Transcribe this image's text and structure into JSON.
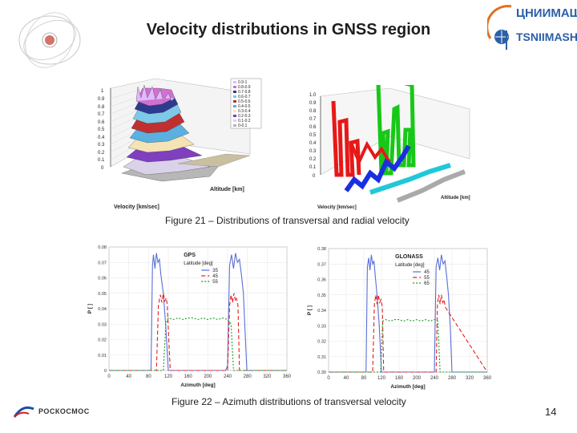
{
  "title": "Velocity distributions in GNSS region",
  "logo_right": {
    "line1": "ЦНИИМАШ",
    "line2": "TSNIIMASH"
  },
  "logo_bottom": {
    "text": "РОСКОСМОС"
  },
  "caption1": "Figure 21 – Distributions of  transversal and radial velocity",
  "caption2": "Figure 22 – Azimuth distributions of transversal velocity",
  "page_number": "14",
  "charts_3d": {
    "left": {
      "x_label": "Velocity [km/sec]",
      "y_label": "Altitude [km]",
      "z_ticks": [
        "0",
        "0.1",
        "0.2",
        "0.3",
        "0.4",
        "0.5",
        "0.6",
        "0.7",
        "0.8",
        "0.9",
        "1"
      ],
      "legend": [
        "0.9-1",
        "0.8-0.9",
        "0.7-0.8",
        "0.6-0.7",
        "0.5-0.6",
        "0.4-0.5",
        "0.3-0.4",
        "0.2-0.3",
        "0.1-0.2",
        "0-0.1"
      ]
    },
    "right": {
      "x_label": "Velocity [km/sec]",
      "y_label": "Altitude [km]",
      "z_ticks": [
        "0",
        "0.1",
        "0.2",
        "0.3",
        "0.4",
        "0.5",
        "0.6",
        "0.7",
        "0.8",
        "0.9",
        "1.0"
      ]
    }
  },
  "chart_data": [
    {
      "type": "line",
      "title": "GPS",
      "xlabel": "Azimuth [deg]",
      "ylabel": "P [ ]",
      "legend_title": "Latitude [deg]",
      "xlim": [
        0,
        360
      ],
      "ylim": [
        0,
        0.08
      ],
      "x_ticks": [
        "0",
        "40",
        "80",
        "120",
        "160",
        "200",
        "240",
        "280",
        "320",
        "360"
      ],
      "y_ticks": [
        "0",
        "0.01",
        "0.02",
        "0.03",
        "0.04",
        "0.05",
        "0.06",
        "0.07",
        "0.08"
      ],
      "series": [
        {
          "name": "35",
          "color": "#5a6fd6",
          "dash": "",
          "x": [
            0,
            85,
            88,
            90,
            93,
            96,
            99,
            102,
            105,
            110,
            115,
            120,
            124,
            128,
            140,
            160,
            180,
            200,
            220,
            232,
            236,
            240,
            244,
            248,
            252,
            256,
            260,
            264,
            268,
            272,
            275,
            279,
            360
          ],
          "y": [
            0,
            0,
            0.068,
            0.075,
            0.066,
            0.076,
            0.07,
            0.072,
            0.062,
            0.05,
            0.028,
            0,
            0,
            0,
            0,
            0,
            0,
            0,
            0,
            0,
            0,
            0.003,
            0.068,
            0.075,
            0.066,
            0.076,
            0.07,
            0.072,
            0.062,
            0.05,
            0.028,
            0,
            0
          ]
        },
        {
          "name": "45",
          "color": "#e02020",
          "dash": "5,3",
          "x": [
            0,
            96,
            100,
            104,
            107,
            110,
            113,
            116,
            118,
            121,
            124,
            160,
            200,
            236,
            240,
            244,
            247,
            250,
            253,
            256,
            258,
            261,
            264,
            360
          ],
          "y": [
            0,
            0,
            0.042,
            0.049,
            0.044,
            0.05,
            0.045,
            0.047,
            0.042,
            0.02,
            0,
            0,
            0,
            0,
            0,
            0.042,
            0.049,
            0.044,
            0.05,
            0.045,
            0.047,
            0.042,
            0,
            0
          ]
        },
        {
          "name": "55",
          "color": "#229922",
          "dash": "2,2",
          "x": [
            0,
            110,
            115,
            120,
            130,
            140,
            150,
            160,
            170,
            180,
            190,
            200,
            210,
            220,
            230,
            240,
            247,
            252,
            360
          ],
          "y": [
            0,
            0,
            0.03,
            0.034,
            0.033,
            0.034,
            0.033,
            0.034,
            0.034,
            0.033,
            0.034,
            0.033,
            0.034,
            0.033,
            0.034,
            0.033,
            0.03,
            0,
            0
          ]
        }
      ]
    },
    {
      "type": "line",
      "title": "GLONASS",
      "xlabel": "Azimuth [deg]",
      "ylabel": "P [ ]",
      "legend_title": "Latitude [deg]",
      "xlim": [
        0,
        360
      ],
      "ylim": [
        0.3,
        0.38
      ],
      "x_ticks": [
        "0",
        "40",
        "80",
        "120",
        "160",
        "200",
        "240",
        "280",
        "320",
        "360"
      ],
      "y_ticks": [
        "0.30",
        "0.31",
        "0.32",
        "0.33",
        "0.34",
        "0.35",
        "0.36",
        "0.37",
        "0.38"
      ],
      "series": [
        {
          "name": "45",
          "color": "#5a6fd6",
          "dash": "",
          "x": [
            0,
            85,
            88,
            91,
            94,
            97,
            100,
            103,
            106,
            110,
            115,
            120,
            124,
            200,
            236,
            240,
            244,
            248,
            252,
            256,
            260,
            264,
            268,
            272,
            276,
            280,
            360
          ],
          "y": [
            0.3,
            0.3,
            0.368,
            0.374,
            0.366,
            0.376,
            0.37,
            0.372,
            0.362,
            0.35,
            0.33,
            0.3,
            0.3,
            0.3,
            0.3,
            0.3,
            0.368,
            0.374,
            0.366,
            0.376,
            0.37,
            0.372,
            0.362,
            0.35,
            0.33,
            0.3,
            0.3
          ]
        },
        {
          "name": "55",
          "color": "#e02020",
          "dash": "5,3",
          "x": [
            0,
            100,
            104,
            107,
            110,
            113,
            116,
            119,
            122,
            125,
            240,
            244,
            247,
            250,
            253,
            256,
            259,
            262,
            265,
            360
          ],
          "y": [
            0.3,
            0.3,
            0.344,
            0.35,
            0.344,
            0.35,
            0.345,
            0.347,
            0.342,
            0.3,
            0.3,
            0.3,
            0.344,
            0.35,
            0.344,
            0.35,
            0.345,
            0.347,
            0.342,
            0.3
          ]
        },
        {
          "name": "65",
          "color": "#229922",
          "dash": "2,2",
          "x": [
            0,
            118,
            123,
            130,
            140,
            150,
            160,
            170,
            180,
            190,
            200,
            210,
            220,
            230,
            240,
            248,
            253,
            360
          ],
          "y": [
            0.3,
            0.3,
            0.333,
            0.334,
            0.333,
            0.334,
            0.334,
            0.333,
            0.334,
            0.333,
            0.334,
            0.333,
            0.334,
            0.333,
            0.334,
            0.333,
            0.3,
            0.3
          ]
        }
      ]
    }
  ]
}
